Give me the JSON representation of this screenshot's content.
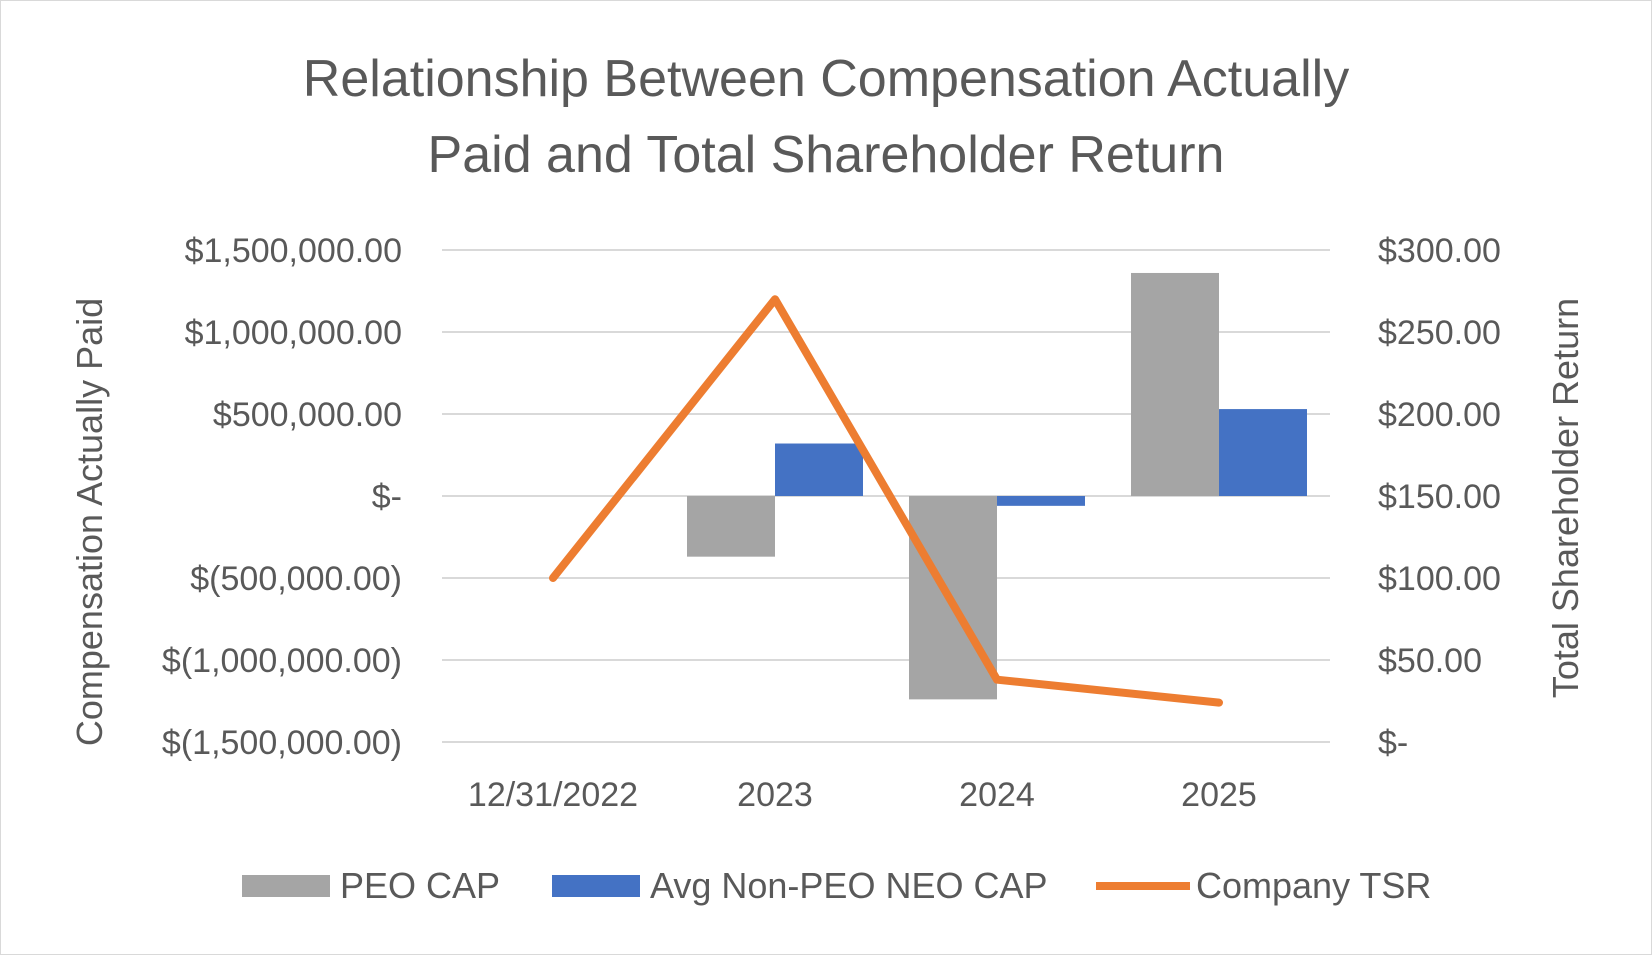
{
  "chart_data": {
    "type": "bar",
    "title_lines": [
      "Relationship Between Compensation Actually",
      "Paid and Total Shareholder Return"
    ],
    "categories": [
      "12/31/2022",
      "2023",
      "2024",
      "2025"
    ],
    "series": [
      {
        "name": "PEO CAP",
        "type": "bar",
        "axis": "left",
        "color": "#a5a5a5",
        "values": [
          null,
          -370000,
          -1240000,
          1360000
        ]
      },
      {
        "name": "Avg Non-PEO NEO CAP",
        "type": "bar",
        "axis": "left",
        "color": "#4472c4",
        "values": [
          null,
          320000,
          -60000,
          530000
        ]
      },
      {
        "name": "Company TSR",
        "type": "line",
        "axis": "right",
        "color": "#ed7d31",
        "values": [
          100,
          270,
          38,
          24
        ]
      }
    ],
    "ylabel_left": "Compensation Actually Paid",
    "ylabel_right": "Total Shareholder Return",
    "ylim_left": [
      -1500000,
      1500000
    ],
    "ylim_right": [
      0,
      300
    ],
    "left_ticks": [
      "$1,500,000.00",
      "$1,000,000.00",
      "$500,000.00",
      "$-",
      "$(500,000.00)",
      "$(1,000,000.00)",
      "$(1,500,000.00)"
    ],
    "right_ticks": [
      "$300.00",
      "$250.00",
      "$200.00",
      "$150.00",
      "$100.00",
      "$50.00",
      "$-"
    ],
    "grid": true,
    "legend_position": "bottom"
  }
}
